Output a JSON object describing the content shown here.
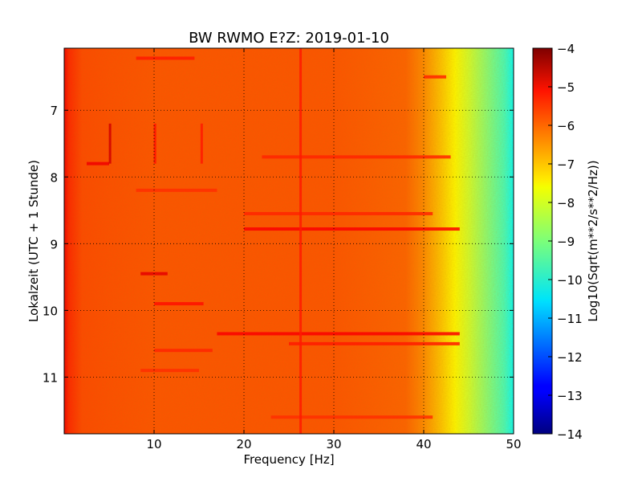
{
  "chart_data": {
    "type": "heatmap",
    "title": "BW RWMO E?Z: 2019-01-10",
    "xlabel": "Frequency [Hz]",
    "ylabel": "Lokalzeit (UTC + 1 Stunde)",
    "xlim": [
      0,
      50
    ],
    "ylim": [
      6.07,
      11.85
    ],
    "y_inverted": true,
    "x_ticks": [
      10,
      20,
      30,
      40,
      50
    ],
    "y_ticks": [
      7,
      8,
      9,
      10,
      11
    ],
    "grid": true,
    "colormap": "jet",
    "colorbar": {
      "label": "Log10(Sqrt(m**2/s**2/Hz))",
      "range": [
        -14,
        -4
      ],
      "ticks": [
        -4,
        -5,
        -6,
        -7,
        -8,
        -9,
        -10,
        -11,
        -12,
        -13,
        -14
      ]
    },
    "spectral_profile": {
      "frequency_hz": [
        0,
        0.5,
        2,
        5,
        10,
        20,
        30,
        38,
        40,
        42,
        43.5,
        45,
        47,
        49,
        50
      ],
      "log10_amplitude": [
        -5.1,
        -5.6,
        -5.95,
        -6.0,
        -6.05,
        -6.05,
        -6.05,
        -6.2,
        -6.6,
        -7.2,
        -7.7,
        -8.2,
        -8.9,
        -9.6,
        -10.2
      ]
    },
    "horizontal_features": [
      {
        "time": 6.22,
        "f_start": 8,
        "f_end": 14.5,
        "value": -5.5
      },
      {
        "time": 6.5,
        "f_start": 40,
        "f_end": 42.5,
        "value": -5.6
      },
      {
        "time": 7.8,
        "f_start": 2.5,
        "f_end": 5,
        "value": -5.1
      },
      {
        "time": 7.7,
        "f_start": 22,
        "f_end": 43,
        "value": -5.6
      },
      {
        "time": 8.2,
        "f_start": 8,
        "f_end": 17,
        "value": -5.7
      },
      {
        "time": 8.55,
        "f_start": 20,
        "f_end": 41,
        "value": -5.6
      },
      {
        "time": 8.78,
        "f_start": 20,
        "f_end": 44,
        "value": -5.2
      },
      {
        "time": 9.45,
        "f_start": 8.5,
        "f_end": 11.5,
        "value": -5.0
      },
      {
        "time": 9.9,
        "f_start": 10,
        "f_end": 15.5,
        "value": -5.4
      },
      {
        "time": 10.35,
        "f_start": 17,
        "f_end": 44,
        "value": -5.2
      },
      {
        "time": 10.5,
        "f_start": 25,
        "f_end": 44,
        "value": -5.5
      },
      {
        "time": 10.6,
        "f_start": 10,
        "f_end": 16.5,
        "value": -5.6
      },
      {
        "time": 10.9,
        "f_start": 8.5,
        "f_end": 15,
        "value": -5.7
      },
      {
        "time": 11.6,
        "f_start": 23,
        "f_end": 41,
        "value": -5.7
      }
    ],
    "vertical_features": [
      {
        "freq": 5.1,
        "t_start": 7.2,
        "t_end": 7.8,
        "value": -4.8
      },
      {
        "freq": 10.1,
        "t_start": 7.2,
        "t_end": 7.8,
        "value": -5.4
      },
      {
        "freq": 15.3,
        "t_start": 7.2,
        "t_end": 7.8,
        "value": -5.5
      },
      {
        "freq": 26.3,
        "t_start": 6.07,
        "t_end": 11.85,
        "value": -5.5
      }
    ]
  }
}
